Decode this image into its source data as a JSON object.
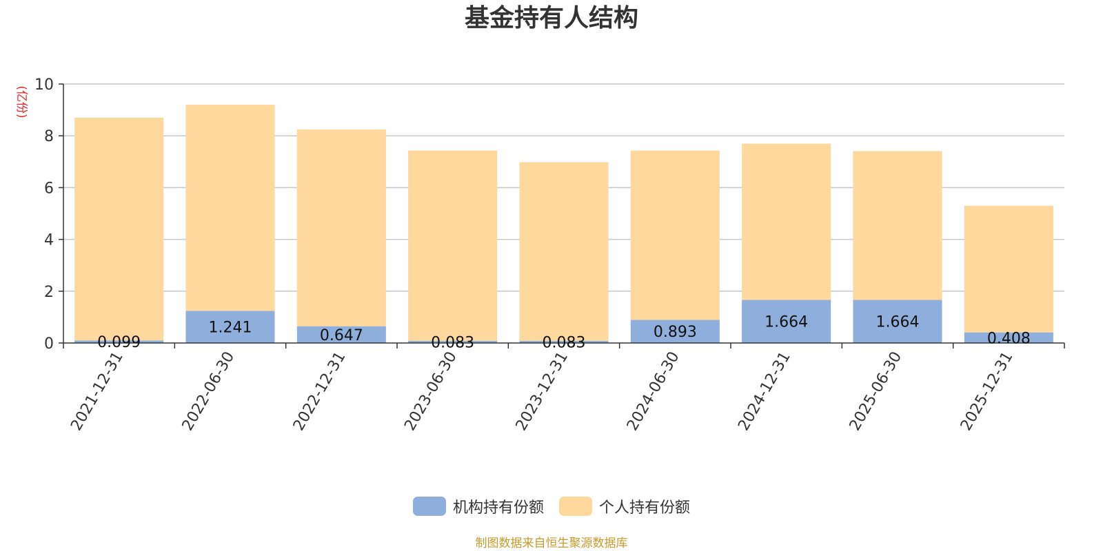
{
  "chart_data": {
    "type": "bar",
    "stacked": true,
    "title": "基金持有人结构",
    "unit_label": "(亿份)",
    "categories": [
      "2021-12-31",
      "2022-06-30",
      "2022-12-31",
      "2023-06-30",
      "2023-12-31",
      "2024-06-30",
      "2024-12-31",
      "2025-06-30",
      "2025-12-31"
    ],
    "series": [
      {
        "name": "机构持有份额",
        "color": "#8eaedb",
        "values": [
          0.099,
          1.241,
          0.647,
          0.083,
          0.083,
          0.893,
          1.664,
          1.664,
          0.408
        ],
        "labels": [
          "0.099",
          "1.241",
          "0.647",
          "0.083",
          "0.083",
          "0.893",
          "1.664",
          "1.664",
          "0.408"
        ]
      },
      {
        "name": "个人持有份额",
        "color": "#fed89c",
        "values": [
          8.601,
          7.959,
          7.603,
          7.347,
          6.897,
          6.537,
          6.036,
          5.746,
          4.892
        ]
      }
    ],
    "ylim": [
      0,
      10
    ],
    "yticks": [
      0,
      2,
      4,
      6,
      8,
      10
    ],
    "grid": true,
    "legend_position": "bottom-center"
  },
  "source_note": "制图数据来自恒生聚源数据库"
}
